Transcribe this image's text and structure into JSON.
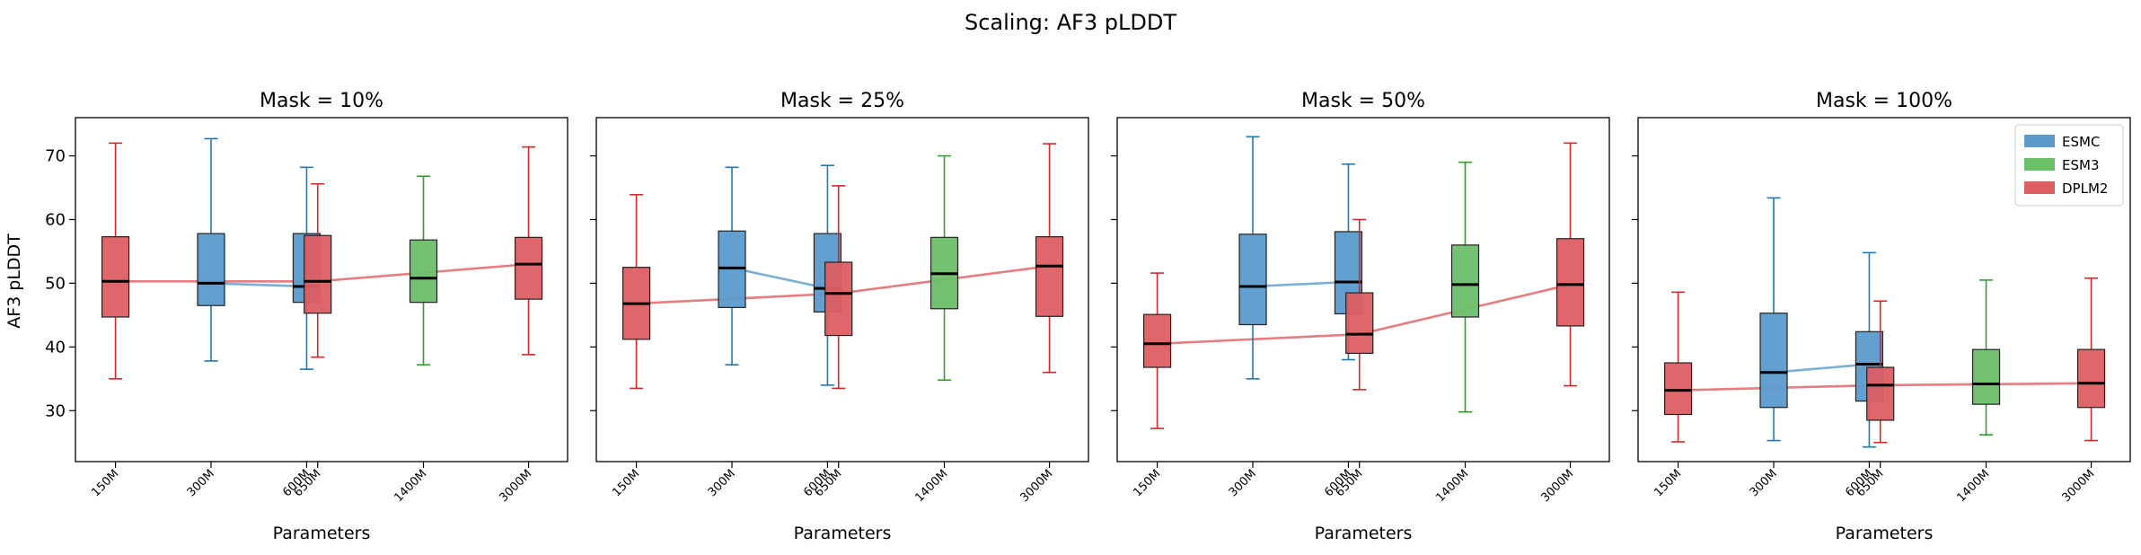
{
  "chart_data": {
    "type": "box",
    "title": "Scaling: AF3 pLDDT",
    "ylabel": "AF3 pLDDT",
    "xlabel": "Parameters",
    "ylim": [
      22,
      76
    ],
    "yticks": [
      30,
      40,
      50,
      60,
      70
    ],
    "xscale": "log",
    "xlim_log10": [
      2.05,
      3.6
    ],
    "xticks": [
      {
        "label": "150M",
        "value": 150
      },
      {
        "label": "300M",
        "value": 300
      },
      {
        "label": "600M",
        "value": 600
      },
      {
        "label": "650M",
        "value": 650
      },
      {
        "label": "1400M",
        "value": 1400
      },
      {
        "label": "3000M",
        "value": 3000
      }
    ],
    "legend": {
      "placement": "top-right",
      "panel": 3
    },
    "series": [
      {
        "name": "ESMC",
        "color": "#5b9bcc",
        "edge": "#1f77b4"
      },
      {
        "name": "ESM3",
        "color": "#6abf69",
        "edge": "#2ca02c"
      },
      {
        "name": "DPLM2",
        "color": "#dd5e62",
        "edge": "#d62728"
      }
    ],
    "panels": [
      {
        "title": "Mask = 10%",
        "boxes": [
          {
            "series": "ESMC",
            "x": 300,
            "q1": 46.5,
            "median": 50.0,
            "q3": 57.8,
            "whislo": 37.8,
            "whishi": 72.7
          },
          {
            "series": "ESMC",
            "x": 600,
            "q1": 47.0,
            "median": 49.5,
            "q3": 57.8,
            "whislo": 36.5,
            "whishi": 68.2
          },
          {
            "series": "ESM3",
            "x": 1400,
            "q1": 47.0,
            "median": 50.8,
            "q3": 56.8,
            "whislo": 37.2,
            "whishi": 66.8
          },
          {
            "series": "DPLM2",
            "x": 150,
            "q1": 44.7,
            "median": 50.3,
            "q3": 57.3,
            "whislo": 35.0,
            "whishi": 72.0
          },
          {
            "series": "DPLM2",
            "x": 650,
            "q1": 45.3,
            "median": 50.3,
            "q3": 57.5,
            "whislo": 38.4,
            "whishi": 65.6
          },
          {
            "series": "DPLM2",
            "x": 3000,
            "q1": 47.5,
            "median": 53.0,
            "q3": 57.2,
            "whislo": 38.8,
            "whishi": 71.4
          }
        ]
      },
      {
        "title": "Mask = 25%",
        "boxes": [
          {
            "series": "ESMC",
            "x": 300,
            "q1": 46.2,
            "median": 52.4,
            "q3": 58.2,
            "whislo": 37.2,
            "whishi": 68.2
          },
          {
            "series": "ESMC",
            "x": 600,
            "q1": 45.5,
            "median": 49.2,
            "q3": 57.8,
            "whislo": 34.0,
            "whishi": 68.5
          },
          {
            "series": "ESM3",
            "x": 1400,
            "q1": 46.0,
            "median": 51.5,
            "q3": 57.2,
            "whislo": 34.8,
            "whishi": 70.0
          },
          {
            "series": "DPLM2",
            "x": 150,
            "q1": 41.2,
            "median": 46.8,
            "q3": 52.5,
            "whislo": 33.5,
            "whishi": 63.9
          },
          {
            "series": "DPLM2",
            "x": 650,
            "q1": 41.8,
            "median": 48.4,
            "q3": 53.3,
            "whislo": 33.5,
            "whishi": 65.3
          },
          {
            "series": "DPLM2",
            "x": 3000,
            "q1": 44.8,
            "median": 52.7,
            "q3": 57.3,
            "whislo": 36.0,
            "whishi": 71.9
          }
        ]
      },
      {
        "title": "Mask = 50%",
        "boxes": [
          {
            "series": "ESMC",
            "x": 300,
            "q1": 43.5,
            "median": 49.5,
            "q3": 57.7,
            "whislo": 35.0,
            "whishi": 73.0
          },
          {
            "series": "ESMC",
            "x": 600,
            "q1": 45.2,
            "median": 50.2,
            "q3": 58.1,
            "whislo": 38.0,
            "whishi": 68.7
          },
          {
            "series": "ESM3",
            "x": 1400,
            "q1": 44.7,
            "median": 49.8,
            "q3": 56.0,
            "whislo": 29.8,
            "whishi": 69.0
          },
          {
            "series": "DPLM2",
            "x": 150,
            "q1": 36.8,
            "median": 40.5,
            "q3": 45.1,
            "whislo": 27.2,
            "whishi": 51.6
          },
          {
            "series": "DPLM2",
            "x": 650,
            "q1": 39.0,
            "median": 42.0,
            "q3": 48.5,
            "whislo": 33.3,
            "whishi": 60.0
          },
          {
            "series": "DPLM2",
            "x": 3000,
            "q1": 43.3,
            "median": 49.8,
            "q3": 57.0,
            "whislo": 33.9,
            "whishi": 72.0
          }
        ]
      },
      {
        "title": "Mask = 100%",
        "boxes": [
          {
            "series": "ESMC",
            "x": 300,
            "q1": 30.5,
            "median": 36.0,
            "q3": 45.3,
            "whislo": 25.3,
            "whishi": 63.4
          },
          {
            "series": "ESMC",
            "x": 600,
            "q1": 31.5,
            "median": 37.3,
            "q3": 42.4,
            "whislo": 24.3,
            "whishi": 54.8
          },
          {
            "series": "ESM3",
            "x": 1400,
            "q1": 31.0,
            "median": 34.2,
            "q3": 39.6,
            "whislo": 26.2,
            "whishi": 50.5
          },
          {
            "series": "DPLM2",
            "x": 150,
            "q1": 29.4,
            "median": 33.2,
            "q3": 37.5,
            "whislo": 25.1,
            "whishi": 48.6
          },
          {
            "series": "DPLM2",
            "x": 650,
            "q1": 28.5,
            "median": 34.0,
            "q3": 36.8,
            "whislo": 25.0,
            "whishi": 47.2
          },
          {
            "series": "DPLM2",
            "x": 3000,
            "q1": 30.5,
            "median": 34.3,
            "q3": 39.6,
            "whislo": 25.3,
            "whishi": 50.8
          }
        ]
      }
    ]
  }
}
